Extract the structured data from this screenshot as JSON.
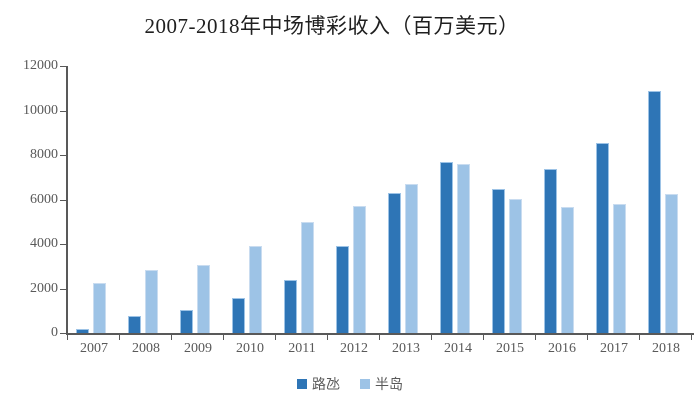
{
  "title": "2007-2018年中场博彩收入（百万美元）",
  "chart_data": {
    "type": "bar",
    "categories": [
      "2007",
      "2008",
      "2009",
      "2010",
      "2011",
      "2012",
      "2013",
      "2014",
      "2015",
      "2016",
      "2017",
      "2018"
    ],
    "series": [
      {
        "name": "路氹",
        "color": "#2E75B6",
        "values": [
          200,
          750,
          1050,
          1560,
          2360,
          3930,
          6310,
          7700,
          6490,
          7390,
          8540,
          10880
        ]
      },
      {
        "name": "半岛",
        "color": "#9DC3E6",
        "values": [
          2250,
          2810,
          3060,
          3920,
          5000,
          5700,
          6700,
          7600,
          6010,
          5660,
          5800,
          6260
        ]
      }
    ],
    "title": "2007-2018年中场博彩收入（百万美元）",
    "xlabel": "",
    "ylabel": "",
    "ylim": [
      0,
      12000
    ],
    "ytick_interval": 2000,
    "ytick_labels": [
      "0",
      "2000",
      "4000",
      "6000",
      "8000",
      "10000",
      "12000"
    ],
    "grid": false,
    "legend_position": "bottom"
  },
  "colors": {
    "axis": "#595959",
    "tick_label": "#595959",
    "title_text": "#1f1f1f",
    "background": "#ffffff"
  }
}
